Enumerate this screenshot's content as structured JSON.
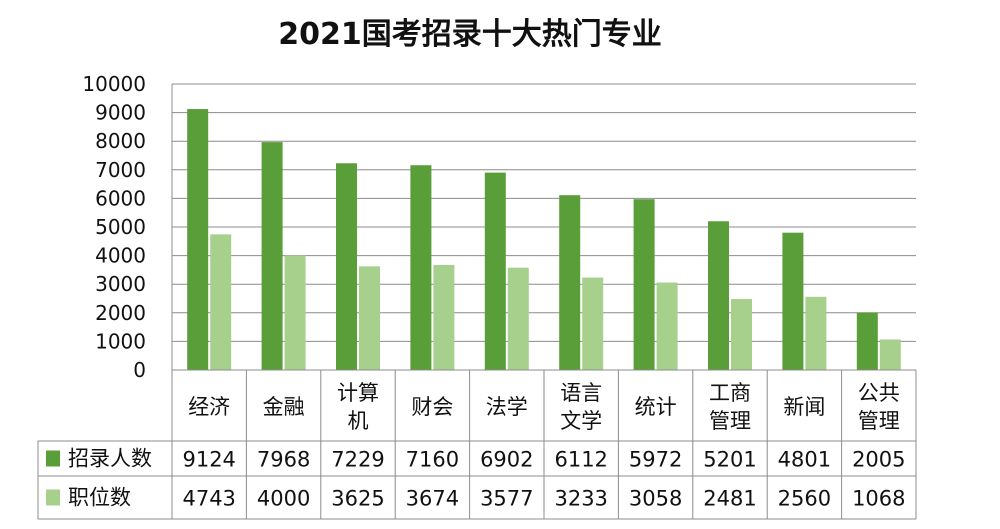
{
  "chart_data": {
    "type": "bar",
    "title": "2021国考招录十大热门专业",
    "categories": [
      [
        "经济"
      ],
      [
        "金融"
      ],
      [
        "计算",
        "机"
      ],
      [
        "财会"
      ],
      [
        "法学"
      ],
      [
        "语言",
        "文学"
      ],
      [
        "统计"
      ],
      [
        "工商",
        "管理"
      ],
      [
        "新闻"
      ],
      [
        "公共",
        "管理"
      ]
    ],
    "series": [
      {
        "name": "招录人数",
        "color": "#5a9e3a",
        "values": [
          9124,
          7968,
          7229,
          7160,
          6902,
          6112,
          5972,
          5201,
          4801,
          2005
        ]
      },
      {
        "name": "职位数",
        "color": "#a8d08d",
        "values": [
          4743,
          4000,
          3625,
          3674,
          3577,
          3233,
          3058,
          2481,
          2560,
          1068
        ]
      }
    ],
    "ylim": [
      0,
      10000
    ],
    "yticks": [
      0,
      1000,
      2000,
      3000,
      4000,
      5000,
      6000,
      7000,
      8000,
      9000,
      10000
    ],
    "grid": true,
    "legend": "data-table"
  }
}
